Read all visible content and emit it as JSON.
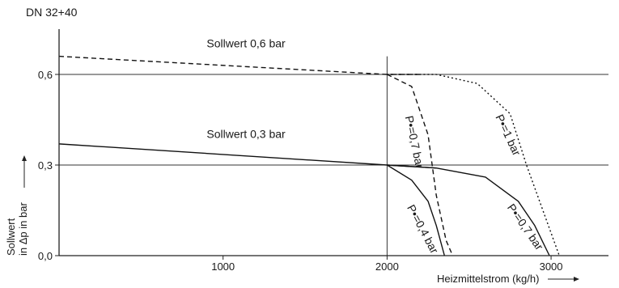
{
  "chart_data": {
    "type": "line",
    "title": "DN 32+40",
    "xlabel": "Heizmittelstrom (kg/h)",
    "ylabel_line1": "Sollwert",
    "ylabel_line2": "in Δp in bar",
    "xlim": [
      0,
      3350
    ],
    "ylim": [
      0,
      0.75
    ],
    "xticks": [
      1000,
      2000,
      3000
    ],
    "xtick_labels": [
      "1000",
      "2000",
      "3000"
    ],
    "yticks": [
      0,
      0.3,
      0.6
    ],
    "ytick_labels": [
      "0,0",
      "0,3",
      "0,6"
    ],
    "grid": "horizontal at 0,3 and 0,6; vertical at 2000",
    "series": [
      {
        "name": "Sollwert 0,6 bar",
        "style": "dashed",
        "points": [
          [
            0,
            0.66
          ],
          [
            2000,
            0.6
          ],
          [
            2200,
            0.6
          ]
        ]
      },
      {
        "name": "Sollwert 0,3 bar",
        "style": "solid",
        "points": [
          [
            0,
            0.37
          ],
          [
            2000,
            0.3
          ],
          [
            2300,
            0.29
          ]
        ]
      },
      {
        "name": "P=0,7 bar",
        "style": "dashed",
        "points": [
          [
            2000,
            0.6
          ],
          [
            2150,
            0.56
          ],
          [
            2250,
            0.4
          ],
          [
            2300,
            0.2
          ],
          [
            2360,
            0.05
          ],
          [
            2400,
            0.0
          ]
        ]
      },
      {
        "name": "P=1 bar",
        "style": "dotted",
        "points": [
          [
            2000,
            0.6
          ],
          [
            2300,
            0.6
          ],
          [
            2550,
            0.57
          ],
          [
            2750,
            0.47
          ],
          [
            2850,
            0.3
          ],
          [
            2950,
            0.15
          ],
          [
            3050,
            0.0
          ]
        ]
      },
      {
        "name": "P=0,4 bar",
        "style": "solid",
        "points": [
          [
            2000,
            0.3
          ],
          [
            2150,
            0.25
          ],
          [
            2250,
            0.18
          ],
          [
            2300,
            0.1
          ],
          [
            2350,
            0.0
          ]
        ]
      },
      {
        "name": "P=0,7 bar",
        "style": "solid",
        "points": [
          [
            2000,
            0.3
          ],
          [
            2300,
            0.29
          ],
          [
            2600,
            0.26
          ],
          [
            2800,
            0.18
          ],
          [
            2900,
            0.1
          ],
          [
            2990,
            0.0
          ]
        ]
      }
    ],
    "annotations": [
      {
        "text": "Sollwert 0,6 bar",
        "x": 900,
        "y": 0.69
      },
      {
        "text": "Sollwert 0,3 bar",
        "x": 900,
        "y": 0.39
      },
      {
        "text": "P•=0,7 bar",
        "x": 2110,
        "y": 0.46,
        "rotate": 78
      },
      {
        "text": "P•=1 bar",
        "x": 2660,
        "y": 0.46,
        "rotate": 65
      },
      {
        "text": "P•=0,4 bar",
        "x": 2120,
        "y": 0.16,
        "rotate": 62
      },
      {
        "text": "P•=0,7 bar",
        "x": 2730,
        "y": 0.16,
        "rotate": 55
      }
    ]
  }
}
